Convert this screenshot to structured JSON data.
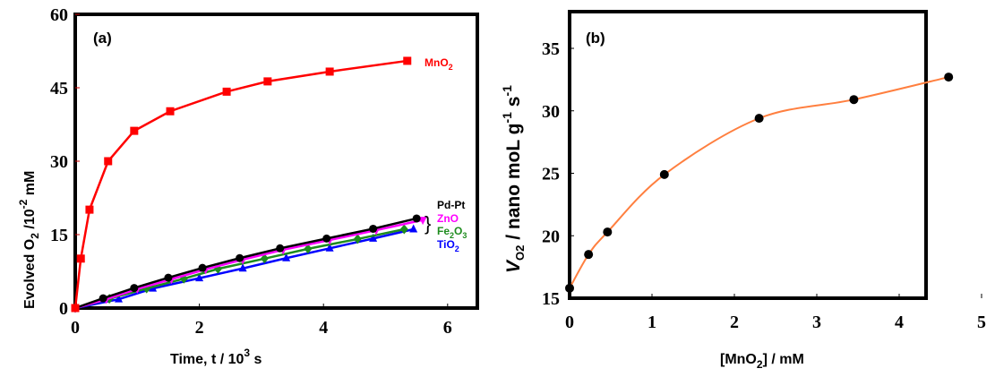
{
  "chart_data": [
    {
      "type": "line",
      "panel_label": "(a)",
      "title": "",
      "xlabel": "Time, t / 10",
      "xlabel_sup": "3",
      "xlabel_tail": " s",
      "ylabel": "Evolved O",
      "ylabel_sub": "2",
      "ylabel_mid": " /10",
      "ylabel_sup": "-2",
      "ylabel_tail": " mM",
      "xlim": [
        0,
        6.5
      ],
      "ylim": [
        0,
        60
      ],
      "xticks": [
        "0",
        "2",
        "4",
        "6"
      ],
      "xtick_values": [
        0,
        2,
        4,
        6
      ],
      "yticks": [
        "0",
        "15",
        "30",
        "45",
        "60"
      ],
      "ytick_values": [
        0,
        15,
        30,
        45,
        60
      ],
      "grid": false,
      "series": [
        {
          "name": "MnO2",
          "label": "MnO",
          "label_sub": "2",
          "color": "#ff0000",
          "marker": "square",
          "x": [
            0,
            0.09,
            0.23,
            0.53,
            0.95,
            1.53,
            2.44,
            3.1,
            4.1,
            5.35
          ],
          "y": [
            0,
            10.1,
            20.1,
            30.0,
            36.2,
            40.2,
            44.2,
            46.3,
            48.3,
            50.5
          ]
        },
        {
          "name": "Pd-Pt",
          "label": "Pd-Pt",
          "label_sub": "",
          "color": "#000000",
          "marker": "circle",
          "x": [
            0,
            0.45,
            0.95,
            1.5,
            2.05,
            2.65,
            3.3,
            4.05,
            4.8,
            5.5
          ],
          "y": [
            0,
            2.0,
            4.1,
            6.2,
            8.2,
            10.2,
            12.2,
            14.2,
            16.2,
            18.3
          ]
        },
        {
          "name": "ZnO",
          "label": "ZnO",
          "label_sub": "",
          "color": "#ff00ff",
          "marker": "triangle-down",
          "x": [
            0,
            0.5,
            1.0,
            1.55,
            2.1,
            2.7,
            3.35,
            4.1,
            4.85,
            5.6
          ],
          "y": [
            0,
            1.8,
            3.9,
            5.9,
            7.9,
            9.9,
            11.9,
            13.9,
            15.9,
            18.0
          ]
        },
        {
          "name": "Fe2O3",
          "label": "Fe",
          "label_sub": "2",
          "label_tail": "O",
          "label_sub2": "3",
          "color": "#1e8c1e",
          "marker": "diamond",
          "x": [
            0,
            0.55,
            1.15,
            1.75,
            2.3,
            3.05,
            3.75,
            4.55,
            5.3
          ],
          "y": [
            0,
            1.9,
            4.0,
            6.0,
            8.0,
            10.1,
            12.1,
            14.1,
            16.1
          ]
        },
        {
          "name": "TiO2",
          "label": "TiO",
          "label_sub": "2",
          "color": "#0000ff",
          "marker": "triangle-up",
          "x": [
            0,
            0.7,
            1.25,
            2.0,
            2.7,
            3.4,
            4.1,
            4.8,
            5.45
          ],
          "y": [
            0,
            1.8,
            4.0,
            6.1,
            8.1,
            10.2,
            12.2,
            14.2,
            16.1
          ]
        }
      ],
      "annotation": "}"
    },
    {
      "type": "scatter",
      "panel_label": "(b)",
      "title": "",
      "xlabel": "[MnO",
      "xlabel_sub": "2",
      "xlabel_tail": "] / mM",
      "ylabel": "V",
      "ylabel_sub": "O2",
      "ylabel_tail": " / nano moL g",
      "ylabel_sup1": "-1",
      "ylabel_mid": " s",
      "ylabel_sup2": "-1",
      "xlim": [
        0,
        5
      ],
      "ylim": [
        15,
        37.5
      ],
      "xticks": [
        "0",
        "1",
        "2",
        "3",
        "4",
        "5"
      ],
      "xtick_values": [
        0,
        1,
        2,
        3,
        4,
        5
      ],
      "yticks": [
        "15",
        "20",
        "25",
        "30",
        "35"
      ],
      "ytick_values": [
        15,
        20,
        25,
        30,
        35
      ],
      "grid": false,
      "series": [
        {
          "name": "data",
          "marker": "circle",
          "color": "#000000",
          "x": [
            0,
            0.23,
            0.46,
            1.15,
            2.3,
            3.45,
            4.6
          ],
          "y": [
            15.8,
            18.5,
            20.3,
            24.9,
            29.4,
            30.9,
            32.7
          ]
        }
      ],
      "fit": {
        "color": "#ff7f3f",
        "x": [
          0,
          0.23,
          0.46,
          1.15,
          2.3,
          3.45,
          4.6
        ],
        "y": [
          15.8,
          18.5,
          20.3,
          24.9,
          29.4,
          30.9,
          32.7
        ]
      }
    }
  ]
}
